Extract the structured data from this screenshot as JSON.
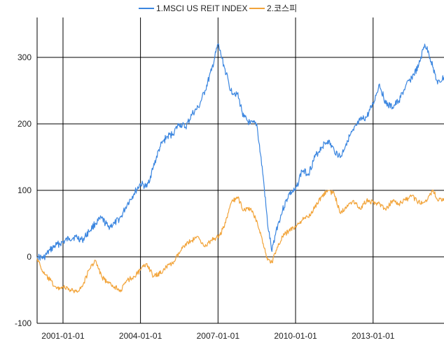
{
  "chart_data": {
    "type": "line",
    "title": "",
    "xlabel": "",
    "ylabel": "",
    "xlim": [
      "2000-01-01",
      "2015-09-30"
    ],
    "ylim": [
      -100,
      360
    ],
    "y_ticks": [
      -100,
      0,
      100,
      200,
      300
    ],
    "x_ticks": [
      "2001-01-01",
      "2004-01-01",
      "2007-01-01",
      "2010-01-01",
      "2013-01-01"
    ],
    "grid": true,
    "legend_position": "top-center",
    "series": [
      {
        "name": "1.MSCI US REIT INDEX",
        "color": "#3b86e0",
        "points": [
          [
            "2000-01-01",
            0
          ],
          [
            "2000-04-01",
            -2
          ],
          [
            "2000-07-01",
            10
          ],
          [
            "2000-10-01",
            18
          ],
          [
            "2001-01-01",
            22
          ],
          [
            "2001-04-01",
            28
          ],
          [
            "2001-07-01",
            30
          ],
          [
            "2001-10-01",
            25
          ],
          [
            "2002-01-01",
            38
          ],
          [
            "2002-04-01",
            50
          ],
          [
            "2002-07-01",
            58
          ],
          [
            "2002-10-01",
            45
          ],
          [
            "2003-01-01",
            50
          ],
          [
            "2003-04-01",
            60
          ],
          [
            "2003-07-01",
            80
          ],
          [
            "2003-10-01",
            95
          ],
          [
            "2004-01-01",
            110
          ],
          [
            "2004-04-01",
            105
          ],
          [
            "2004-07-01",
            135
          ],
          [
            "2004-10-01",
            165
          ],
          [
            "2005-01-01",
            180
          ],
          [
            "2005-04-01",
            185
          ],
          [
            "2005-07-01",
            200
          ],
          [
            "2005-10-01",
            195
          ],
          [
            "2006-01-01",
            215
          ],
          [
            "2006-04-01",
            225
          ],
          [
            "2006-07-01",
            250
          ],
          [
            "2006-10-01",
            280
          ],
          [
            "2007-01-01",
            320
          ],
          [
            "2007-04-01",
            285
          ],
          [
            "2007-07-01",
            250
          ],
          [
            "2007-10-01",
            245
          ],
          [
            "2008-01-01",
            210
          ],
          [
            "2008-04-01",
            200
          ],
          [
            "2008-07-01",
            200
          ],
          [
            "2008-10-01",
            120
          ],
          [
            "2008-12-01",
            50
          ],
          [
            "2009-02-01",
            8
          ],
          [
            "2009-04-01",
            40
          ],
          [
            "2009-07-01",
            70
          ],
          [
            "2009-10-01",
            95
          ],
          [
            "2010-01-01",
            100
          ],
          [
            "2010-04-01",
            130
          ],
          [
            "2010-07-01",
            125
          ],
          [
            "2010-10-01",
            150
          ],
          [
            "2011-01-01",
            165
          ],
          [
            "2011-04-01",
            175
          ],
          [
            "2011-07-01",
            160
          ],
          [
            "2011-10-01",
            150
          ],
          [
            "2012-01-01",
            175
          ],
          [
            "2012-04-01",
            190
          ],
          [
            "2012-07-01",
            205
          ],
          [
            "2012-10-01",
            210
          ],
          [
            "2013-01-01",
            230
          ],
          [
            "2013-04-01",
            260
          ],
          [
            "2013-07-01",
            230
          ],
          [
            "2013-10-01",
            225
          ],
          [
            "2014-01-01",
            235
          ],
          [
            "2014-04-01",
            255
          ],
          [
            "2014-07-01",
            270
          ],
          [
            "2014-10-01",
            285
          ],
          [
            "2015-01-01",
            320
          ],
          [
            "2015-03-01",
            305
          ],
          [
            "2015-05-01",
            285
          ],
          [
            "2015-07-01",
            260
          ],
          [
            "2015-09-30",
            270
          ]
        ]
      },
      {
        "name": "2.코스피",
        "color": "#f2a43a",
        "points": [
          [
            "2000-01-01",
            -2
          ],
          [
            "2000-04-01",
            -25
          ],
          [
            "2000-07-01",
            -35
          ],
          [
            "2000-10-01",
            -48
          ],
          [
            "2001-01-01",
            -45
          ],
          [
            "2001-04-01",
            -50
          ],
          [
            "2001-07-01",
            -52
          ],
          [
            "2001-10-01",
            -45
          ],
          [
            "2002-01-01",
            -20
          ],
          [
            "2002-04-01",
            -5
          ],
          [
            "2002-07-01",
            -30
          ],
          [
            "2002-10-01",
            -40
          ],
          [
            "2003-01-01",
            -45
          ],
          [
            "2003-04-01",
            -50
          ],
          [
            "2003-07-01",
            -35
          ],
          [
            "2003-10-01",
            -30
          ],
          [
            "2004-01-01",
            -20
          ],
          [
            "2004-04-01",
            -10
          ],
          [
            "2004-07-01",
            -30
          ],
          [
            "2004-10-01",
            -25
          ],
          [
            "2005-01-01",
            -15
          ],
          [
            "2005-04-01",
            -10
          ],
          [
            "2005-07-01",
            5
          ],
          [
            "2005-10-01",
            20
          ],
          [
            "2006-01-01",
            25
          ],
          [
            "2006-04-01",
            30
          ],
          [
            "2006-07-01",
            15
          ],
          [
            "2006-10-01",
            25
          ],
          [
            "2007-01-01",
            30
          ],
          [
            "2007-04-01",
            45
          ],
          [
            "2007-07-01",
            80
          ],
          [
            "2007-10-01",
            90
          ],
          [
            "2008-01-01",
            70
          ],
          [
            "2008-04-01",
            72
          ],
          [
            "2008-07-01",
            55
          ],
          [
            "2008-10-01",
            20
          ],
          [
            "2008-12-01",
            -5
          ],
          [
            "2009-02-01",
            -8
          ],
          [
            "2009-04-01",
            10
          ],
          [
            "2009-07-01",
            30
          ],
          [
            "2009-10-01",
            40
          ],
          [
            "2010-01-01",
            45
          ],
          [
            "2010-04-01",
            55
          ],
          [
            "2010-07-01",
            60
          ],
          [
            "2010-10-01",
            75
          ],
          [
            "2011-01-01",
            90
          ],
          [
            "2011-04-01",
            100
          ],
          [
            "2011-07-01",
            95
          ],
          [
            "2011-10-01",
            65
          ],
          [
            "2012-01-01",
            78
          ],
          [
            "2012-04-01",
            85
          ],
          [
            "2012-07-01",
            72
          ],
          [
            "2012-10-01",
            85
          ],
          [
            "2013-01-01",
            82
          ],
          [
            "2013-04-01",
            80
          ],
          [
            "2013-07-01",
            70
          ],
          [
            "2013-10-01",
            85
          ],
          [
            "2014-01-01",
            80
          ],
          [
            "2014-04-01",
            85
          ],
          [
            "2014-07-01",
            92
          ],
          [
            "2014-10-01",
            82
          ],
          [
            "2015-01-01",
            82
          ],
          [
            "2015-03-01",
            92
          ],
          [
            "2015-05-01",
            100
          ],
          [
            "2015-07-01",
            85
          ],
          [
            "2015-09-30",
            88
          ]
        ]
      }
    ]
  }
}
